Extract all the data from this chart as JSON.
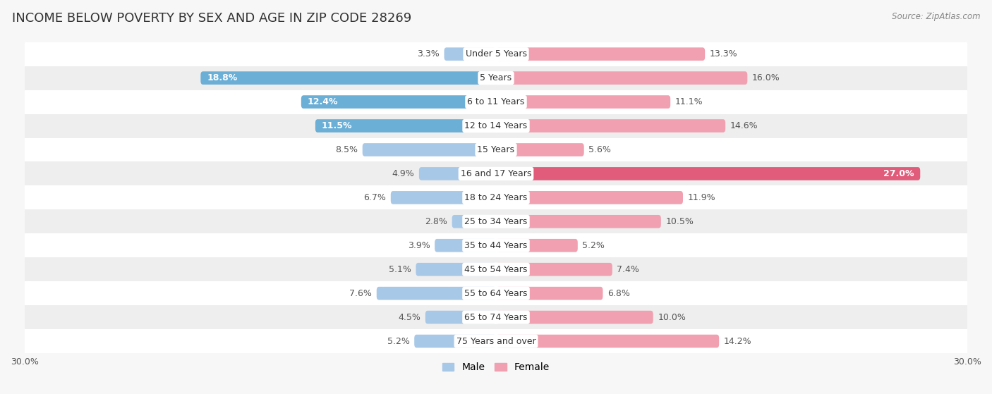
{
  "title": "INCOME BELOW POVERTY BY SEX AND AGE IN ZIP CODE 28269",
  "source": "Source: ZipAtlas.com",
  "categories": [
    "Under 5 Years",
    "5 Years",
    "6 to 11 Years",
    "12 to 14 Years",
    "15 Years",
    "16 and 17 Years",
    "18 to 24 Years",
    "25 to 34 Years",
    "35 to 44 Years",
    "45 to 54 Years",
    "55 to 64 Years",
    "65 to 74 Years",
    "75 Years and over"
  ],
  "male": [
    3.3,
    18.8,
    12.4,
    11.5,
    8.5,
    4.9,
    6.7,
    2.8,
    3.9,
    5.1,
    7.6,
    4.5,
    5.2
  ],
  "female": [
    13.3,
    16.0,
    11.1,
    14.6,
    5.6,
    27.0,
    11.9,
    10.5,
    5.2,
    7.4,
    6.8,
    10.0,
    14.2
  ],
  "male_color_dark": "#6baed6",
  "male_color_light": "#a8c8e8",
  "female_color_dark": "#e05c7a",
  "female_color_light": "#f0a0b0",
  "xlim": 30.0,
  "row_bg_white": "#ffffff",
  "row_bg_gray": "#eeeeee",
  "title_fontsize": 13,
  "label_fontsize": 9,
  "axis_label_fontsize": 9,
  "legend_fontsize": 10,
  "bar_height": 0.55
}
